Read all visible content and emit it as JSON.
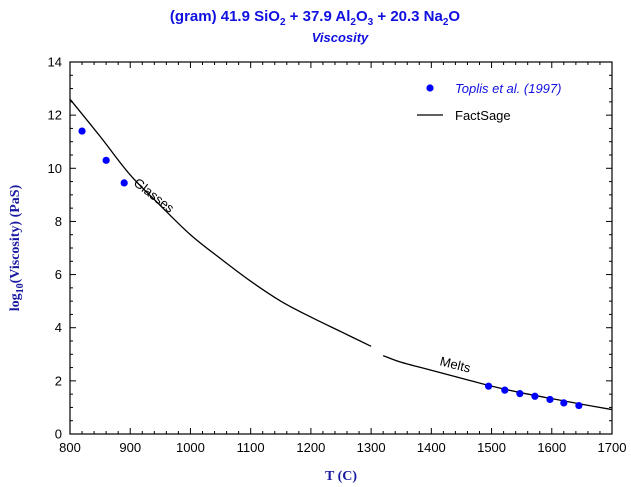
{
  "chart_data": {
    "type": "scatter",
    "title_prefix": "(gram) 41.9 SiO",
    "title_sub1": "2",
    "title_mid1": " + 37.9 Al",
    "title_sub2": "2",
    "title_mid2": "O",
    "title_sub3": "3",
    "title_mid3": " + 20.3 Na",
    "title_sub4": "2",
    "title_end": "O",
    "subtitle": "Viscosity",
    "xlabel": "T (C)",
    "ylabel_pre": "log",
    "ylabel_sub": "10",
    "ylabel_post": "(Viscosity) (PaS)",
    "xlim": [
      800,
      1700
    ],
    "ylim": [
      0,
      14
    ],
    "xticks": [
      800,
      900,
      1000,
      1100,
      1200,
      1300,
      1400,
      1500,
      1600,
      1700
    ],
    "yticks": [
      0,
      2,
      4,
      6,
      8,
      10,
      12,
      14
    ],
    "x_tick_labels": [
      "800",
      "900",
      "1000",
      "1100",
      "1200",
      "1300",
      "1400",
      "1500",
      "1600",
      "1700"
    ],
    "y_tick_labels": [
      "0",
      "2",
      "4",
      "6",
      "8",
      "10",
      "12",
      "14"
    ],
    "series": [
      {
        "name": "Toplis et al. (1997)",
        "kind": "points",
        "color": "#0000ff",
        "x": [
          820,
          860,
          890,
          1495,
          1522,
          1547,
          1572,
          1597,
          1620,
          1645
        ],
        "y": [
          11.4,
          10.3,
          9.45,
          1.8,
          1.65,
          1.52,
          1.42,
          1.3,
          1.17,
          1.07
        ]
      },
      {
        "name": "FactSage",
        "kind": "line",
        "color": "#000000",
        "segments": [
          {
            "x": [
              800,
              850,
              900,
              950,
              1000,
              1050,
              1100,
              1150,
              1200,
              1250,
              1300
            ],
            "y": [
              12.6,
              11.2,
              9.75,
              8.6,
              7.5,
              6.6,
              5.75,
              5.0,
              4.4,
              3.85,
              3.3
            ]
          },
          {
            "x": [
              1320,
              1350,
              1400,
              1450,
              1500,
              1550,
              1600,
              1650,
              1700
            ],
            "y": [
              2.95,
              2.7,
              2.4,
              2.1,
              1.8,
              1.55,
              1.33,
              1.12,
              0.92
            ]
          }
        ]
      }
    ],
    "annotations": [
      {
        "text": "Glasses",
        "x": 935,
        "y": 8.85,
        "angle_deg": 38
      },
      {
        "text": "Melts",
        "x": 1438,
        "y": 2.45,
        "angle_deg": 14
      }
    ],
    "legend": {
      "position": "top-right"
    }
  }
}
